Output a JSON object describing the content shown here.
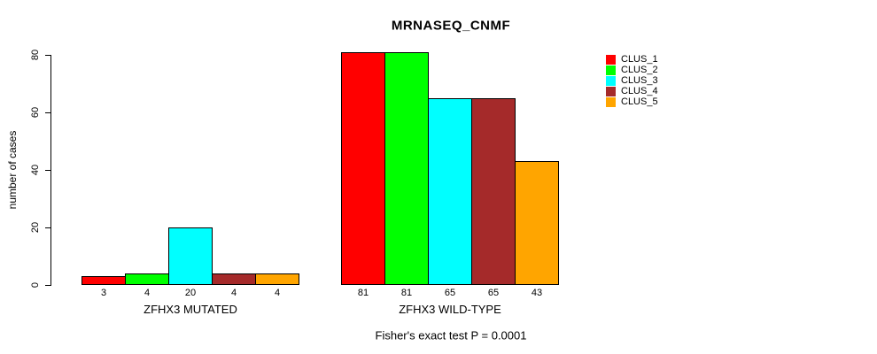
{
  "title": "MRNASEQ_CNMF",
  "footer": "Fisher's exact test P = 0.0001",
  "chart_data": {
    "type": "bar",
    "title": "MRNASEQ_CNMF",
    "xlabel": "",
    "ylabel": "number of cases",
    "ylim": [
      0,
      80
    ],
    "yticks": [
      0,
      20,
      40,
      60,
      80
    ],
    "grid": false,
    "legend_position": "right-outside",
    "categories": [
      "ZFHX3 MUTATED",
      "ZFHX3 WILD-TYPE"
    ],
    "series": [
      {
        "name": "CLUS_1",
        "color": "#ff0000",
        "values": [
          3,
          81
        ]
      },
      {
        "name": "CLUS_2",
        "color": "#00ff00",
        "values": [
          4,
          81
        ]
      },
      {
        "name": "CLUS_3",
        "color": "#00ffff",
        "values": [
          20,
          65
        ]
      },
      {
        "name": "CLUS_4",
        "color": "#a52a2a",
        "values": [
          4,
          65
        ]
      },
      {
        "name": "CLUS_5",
        "color": "#ffa500",
        "values": [
          4,
          43
        ]
      }
    ],
    "bar_value_labels": {
      "ZFHX3 MUTATED": [
        3,
        4,
        20,
        4,
        4
      ],
      "ZFHX3 WILD-TYPE": [
        81,
        81,
        65,
        65,
        43
      ]
    },
    "annotation": "Fisher's exact test P = 0.0001"
  }
}
